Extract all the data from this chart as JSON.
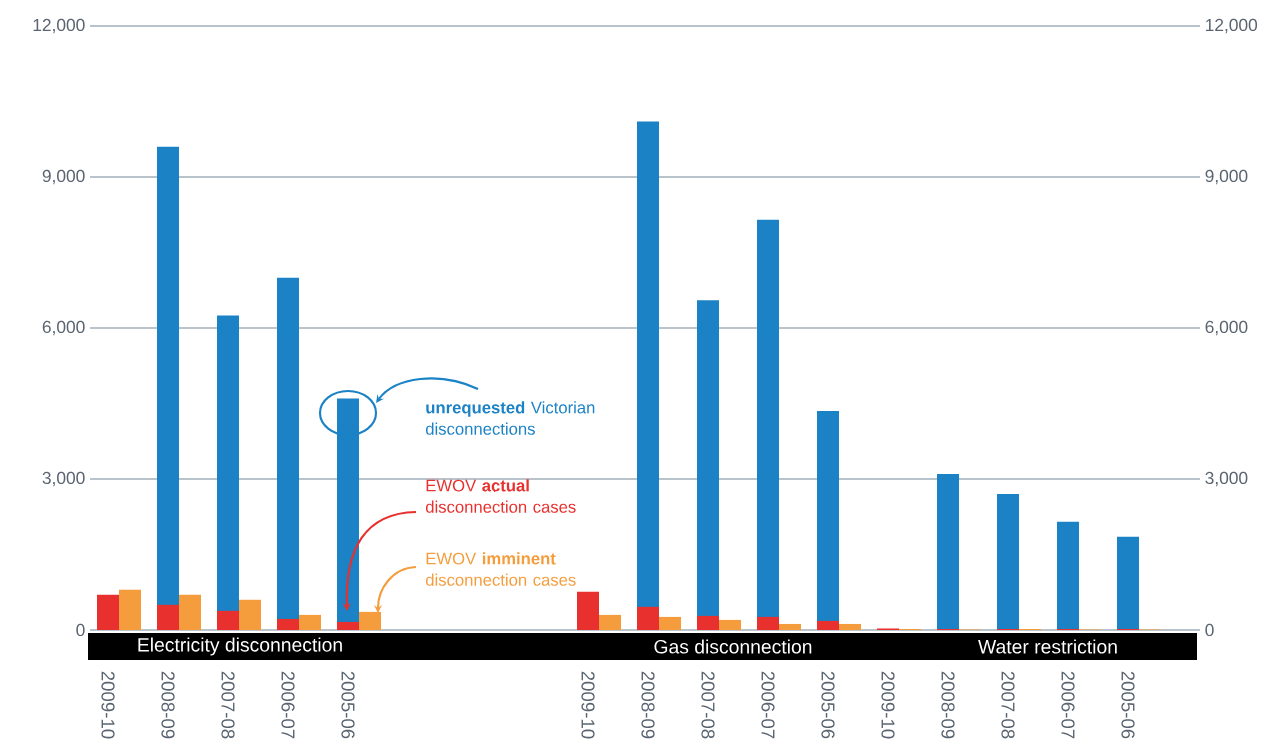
{
  "chart_data": {
    "type": "bar",
    "categories": [
      "2009-10",
      "2008-09",
      "2007-08",
      "2006-07",
      "2005-06",
      null,
      null,
      null,
      "2009-10",
      "2008-09",
      "2007-08",
      "2006-07",
      "2005-06",
      "2009-10",
      "2008-09",
      "2007-08",
      "2006-07",
      "2005-06"
    ],
    "series": [
      {
        "name": "**unrequested** Victorian disconnections",
        "color": "#1b82c6",
        "values": [
          null,
          9600,
          6250,
          7000,
          4600,
          null,
          null,
          null,
          null,
          10100,
          6550,
          8150,
          4350,
          null,
          3100,
          2700,
          2150,
          1850
        ]
      },
      {
        "name": "EWOV **actual** disconnection cases",
        "color": "#e8302e",
        "values": [
          700,
          500,
          380,
          220,
          160,
          null,
          null,
          null,
          760,
          460,
          280,
          260,
          180,
          30,
          20,
          20,
          20,
          20
        ]
      },
      {
        "name": "EWOV **imminent** disconnection cases",
        "color": "#f59c3c",
        "values": [
          800,
          700,
          600,
          300,
          360,
          null,
          null,
          null,
          300,
          260,
          200,
          120,
          120,
          20,
          10,
          20,
          10,
          10
        ]
      }
    ],
    "ylim": [
      0,
      12000
    ],
    "yticks": [
      0,
      {
        "value": 3000,
        "label": "3,000"
      },
      {
        "value": 6000,
        "label": "6,000"
      },
      {
        "value": 9000,
        "label": "9,000"
      },
      {
        "value": 12000,
        "label": "12,000"
      }
    ],
    "y2lim": [
      0,
      12000
    ],
    "y2ticks": [
      0,
      {
        "value": 3000,
        "label": "3,000"
      },
      {
        "value": 6000,
        "label": "6,000"
      },
      {
        "value": 9000,
        "label": "9,000"
      },
      {
        "value": 12000,
        "label": "12,000"
      }
    ],
    "grid": "y",
    "annotations": [
      "Electricity disconnection",
      "Gas disconnection",
      "Water restriction"
    ]
  }
}
